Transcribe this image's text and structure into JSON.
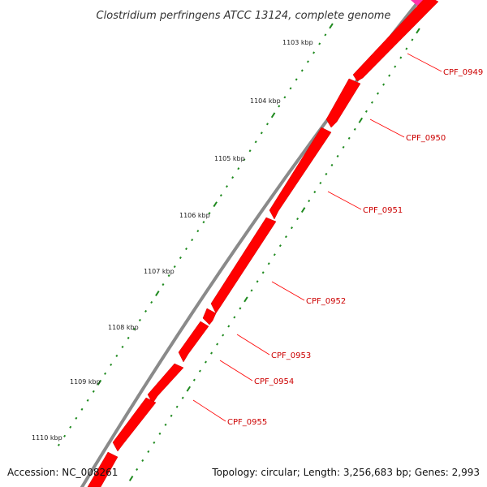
{
  "title": "Clostridium perfringens ATCC 13124, complete genome",
  "footer": {
    "accession": "Accession: NC_008261",
    "summary": "Topology: circular; Length: 3,256,683 bp; Genes: 2,993"
  },
  "colors": {
    "backbone": "#8a8a8a",
    "gene_forward": "#ff0000",
    "gene_edge": "#cc0000",
    "gene_other_strand": "#ff33aa",
    "ticks": "#1f8a1f",
    "label_text": "#cc0000"
  },
  "kbp_markers": [
    "1103 kbp",
    "1104 kbp",
    "1105 kbp",
    "1106 kbp",
    "1107 kbp",
    "1108 kbp",
    "1109 kbp",
    "1110 kbp"
  ],
  "genes": [
    {
      "id": "CPF_0949",
      "label": "CPF_0949"
    },
    {
      "id": "CPF_0950",
      "label": "CPF_0950"
    },
    {
      "id": "CPF_0951",
      "label": "CPF_0951"
    },
    {
      "id": "CPF_0952",
      "label": "CPF_0952"
    },
    {
      "id": "CPF_0953",
      "label": "CPF_0953"
    },
    {
      "id": "CPF_0954",
      "label": "CPF_0954"
    },
    {
      "id": "CPF_0955",
      "label": "CPF_0955"
    }
  ]
}
